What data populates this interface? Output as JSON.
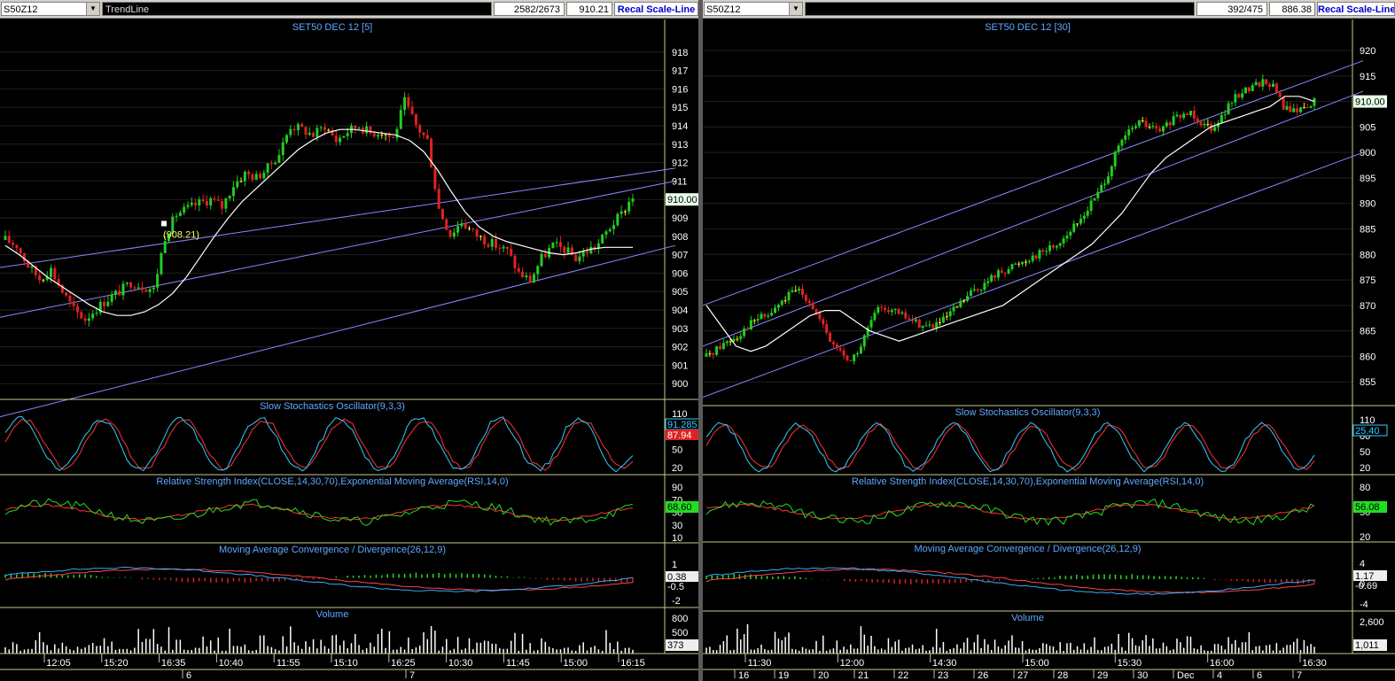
{
  "colors": {
    "background": "#000000",
    "candle_up": "#22cc22",
    "candle_down": "#dd2222",
    "candle_flat": "#eeee22",
    "ma_line": "#ffffff",
    "channel": "#8888ff",
    "stoch_k": "#33ccff",
    "stoch_d": "#ff3333",
    "rsi": "#22dd22",
    "rsi_ema": "#ff3333",
    "macd": "#33aaff",
    "signal": "#ff4444",
    "hist_pos": "#22dd22",
    "hist_neg": "#dd2222",
    "volume": "#ffffff",
    "sep": "#c8c890"
  },
  "left": {
    "symbol": "S50Z12",
    "tool": "TrendLine",
    "count": "2582/2673",
    "price": "910.21",
    "button": "Recal Scale-Line",
    "title": "SET50 DEC 12  [5]",
    "annotation": "(908.21)",
    "current_price_tag": "910.00",
    "indicators": {
      "stoch": {
        "title": "Slow Stochastics Oscillator(9,3,3)",
        "ticks": [
          "110",
          "80",
          "50",
          "20"
        ],
        "tag_k": "91.285",
        "tag_d": "87.94"
      },
      "rsi": {
        "title": "Relative Strength Index(CLOSE,14,30,70),Exponential Moving Average(RSI,14,0)",
        "ticks": [
          "90",
          "70",
          "50",
          "30",
          "10"
        ],
        "tag": "68.60"
      },
      "macd": {
        "title": "Moving Average Convergence / Divergence(26,12,9)",
        "ticks": [
          "1",
          "-2"
        ],
        "tag": "0.38",
        "tag2": "-0.5"
      },
      "volume": {
        "title": "Volume",
        "ticks": [
          "800",
          "500"
        ],
        "tag": "373"
      }
    },
    "x_ticks": [
      "12:05",
      "15:20",
      "16:35",
      "10:40",
      "11:55",
      "15:10",
      "16:25",
      "10:30",
      "11:45",
      "15:00",
      "16:15"
    ],
    "date_ticks": [
      "6",
      "7"
    ]
  },
  "right": {
    "symbol": "S50Z12",
    "count": "392/475",
    "price": "886.38",
    "button": "Recal Scale-Line",
    "title": "SET50 DEC 12  [30]",
    "current_price_tag": "910.00",
    "indicators": {
      "stoch": {
        "title": "Slow Stochastics Oscillator(9,3,3)",
        "ticks": [
          "110",
          "80",
          "50",
          "20"
        ],
        "tag": "25.40"
      },
      "rsi": {
        "title": "Relative Strength Index(CLOSE,14,30,70),Exponential Moving Average(RSI,14,0)",
        "ticks": [
          "80",
          "50",
          "20"
        ],
        "tag": "56.08"
      },
      "macd": {
        "title": "Moving Average Convergence / Divergence(26,12,9)",
        "ticks": [
          "4",
          "0",
          "-4"
        ],
        "tag": "1.17",
        "tag2": "-0.69"
      },
      "volume": {
        "title": "Volume",
        "ticks": [
          "2,600"
        ],
        "tag": "1,011"
      }
    },
    "x_ticks": [
      "11:30",
      "12:00",
      "14:30",
      "15:00",
      "15:30",
      "16:00",
      "16:30"
    ],
    "date_ticks": [
      "16",
      "19",
      "20",
      "21",
      "22",
      "23",
      "26",
      "27",
      "28",
      "29",
      "30",
      "Dec",
      "4",
      "6",
      "7"
    ]
  },
  "chart_data": [
    {
      "type": "candlestick",
      "title": "SET50 DEC 12  [5]",
      "ylim": [
        899,
        919
      ],
      "yticks": [
        900,
        901,
        902,
        903,
        904,
        905,
        906,
        907,
        908,
        909,
        910,
        911,
        912,
        913,
        914,
        915,
        916,
        917,
        918
      ],
      "close_path": [
        907.8,
        907.5,
        906.4,
        905.7,
        906.2,
        905.0,
        904.0,
        903.5,
        904.1,
        904.6,
        905.0,
        905.5,
        905.3,
        905.1,
        908.0,
        909.2,
        909.5,
        909.8,
        910.0,
        909.6,
        910.8,
        911.4,
        911.2,
        911.7,
        912.5,
        914.0,
        913.8,
        913.5,
        914.0,
        913.2,
        913.7,
        914.0,
        913.6,
        913.7,
        913.3,
        915.3,
        914.0,
        913.2,
        909.5,
        908.1,
        908.8,
        908.2,
        907.8,
        907.5,
        907.2,
        906.0,
        905.6,
        906.8,
        907.5,
        907.3,
        906.8,
        907.2,
        907.6,
        908.5,
        909.2,
        910.2
      ],
      "ma_path": [
        907.5,
        907.0,
        906.4,
        905.8,
        905.3,
        904.8,
        904.3,
        903.9,
        903.7,
        903.7,
        903.9,
        904.3,
        904.9,
        905.8,
        906.9,
        908.0,
        909.0,
        909.9,
        910.6,
        911.3,
        912.0,
        912.7,
        913.2,
        913.6,
        913.8,
        913.8,
        913.7,
        913.6,
        913.5,
        913.2,
        912.6,
        911.6,
        910.4,
        909.3,
        908.5,
        908.0,
        907.7,
        907.5,
        907.3,
        907.1,
        907.0,
        907.1,
        907.3,
        907.4,
        907.4,
        907.4
      ],
      "channel_lines": [
        [
          898.2,
          907.5
        ],
        [
          903.6,
          911.0
        ],
        [
          906.3,
          911.7
        ]
      ],
      "x_tick_labels": [
        "12:05",
        "15:20",
        "16:35",
        "10:40",
        "11:55",
        "15:10",
        "16:25",
        "10:30",
        "11:45",
        "15:00",
        "16:15"
      ]
    },
    {
      "type": "candlestick",
      "title": "SET50 DEC 12  [30]",
      "ylim": [
        850,
        924
      ],
      "yticks": [
        855,
        860,
        865,
        870,
        875,
        880,
        885,
        890,
        895,
        900,
        905,
        910,
        915,
        920
      ],
      "close_path": [
        860,
        861.5,
        863,
        864,
        866,
        867.5,
        868,
        870,
        872,
        873,
        871,
        867,
        863,
        861,
        859,
        862,
        867,
        870,
        869,
        868,
        867,
        866,
        866,
        867,
        869,
        871,
        873,
        874,
        876,
        877,
        878,
        879,
        880,
        881,
        882,
        884,
        886,
        889,
        892,
        896,
        901,
        904,
        906,
        905,
        904,
        906,
        907,
        908,
        906,
        905,
        907,
        910,
        912,
        913,
        914,
        913,
        909,
        908,
        909,
        910
      ],
      "ma_path": [
        870,
        866,
        862,
        861,
        862,
        864,
        866,
        868,
        869,
        869,
        867,
        865,
        864,
        863,
        864,
        865,
        866,
        867,
        868,
        869,
        870,
        872,
        874,
        876,
        878,
        880,
        882,
        885,
        888,
        892,
        896,
        899,
        901,
        903,
        905,
        906,
        907,
        908,
        909,
        911,
        911,
        910
      ],
      "channel_lines": [
        [
          870,
          918
        ],
        [
          862,
          912
        ],
        [
          852,
          900
        ]
      ],
      "x_tick_labels": [
        "11:30",
        "12:00",
        "14:30",
        "15:00",
        "15:30",
        "16:00",
        "16:30"
      ]
    }
  ]
}
